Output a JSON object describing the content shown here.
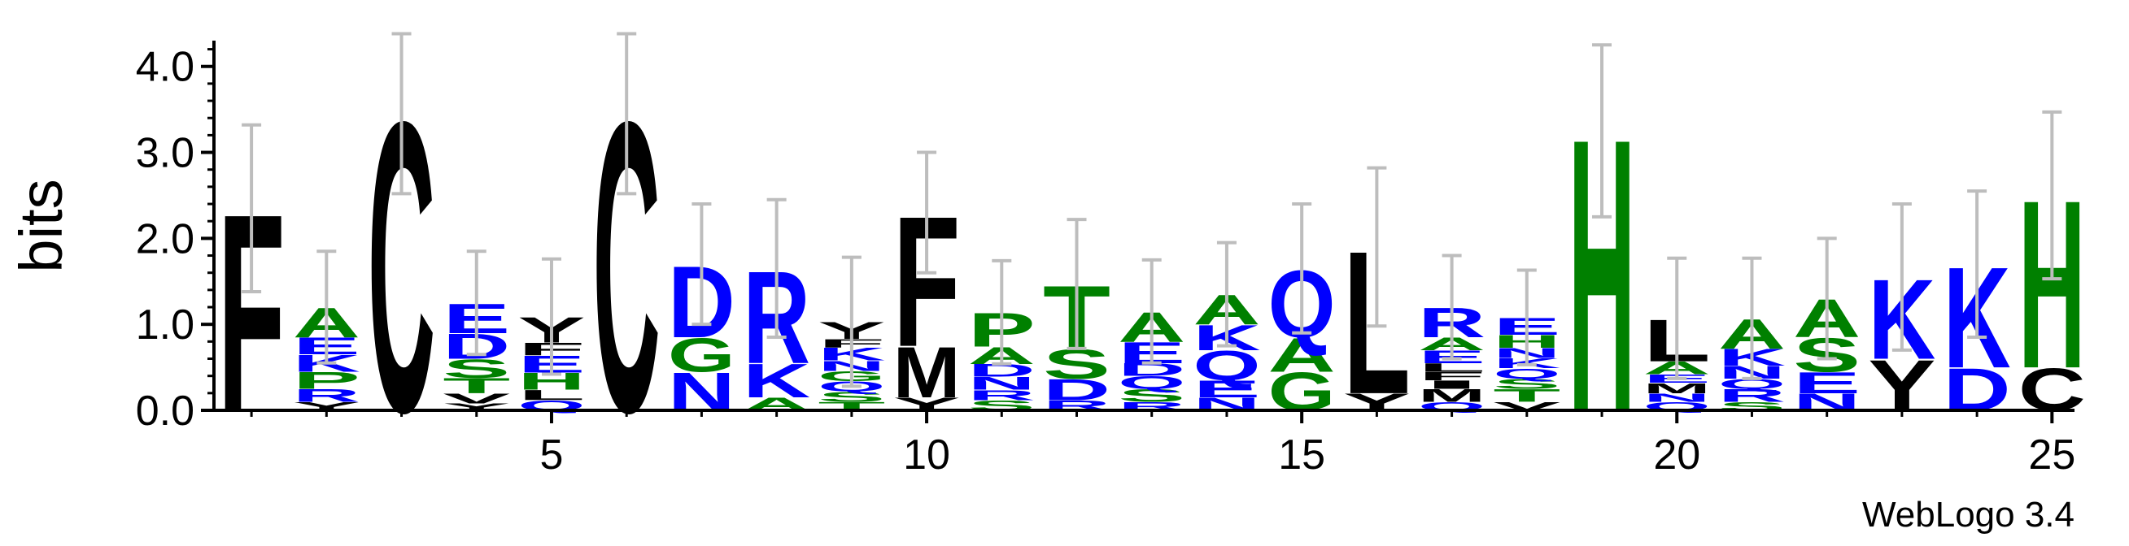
{
  "chart_data": {
    "type": "logo",
    "ylabel": "bits",
    "footer": "WebLogo 3.4",
    "ylim": [
      0,
      4.3
    ],
    "yticks": [
      {
        "value": 0,
        "label": "0.0"
      },
      {
        "value": 1,
        "label": "1.0"
      },
      {
        "value": 2,
        "label": "2.0"
      },
      {
        "value": 3,
        "label": "3.0"
      },
      {
        "value": 4,
        "label": "4.0"
      }
    ],
    "yminorticks": [
      0.2,
      0.4,
      0.6,
      0.8,
      1.2,
      1.4,
      1.6,
      1.8,
      2.2,
      2.4,
      2.6,
      2.8,
      3.2,
      3.4,
      3.6,
      3.8,
      4.2
    ],
    "xlim": [
      0.5,
      25.3
    ],
    "xticks": [
      5,
      10,
      15,
      20,
      25
    ],
    "xminorticks": [
      1,
      2,
      3,
      4,
      6,
      7,
      8,
      9,
      11,
      12,
      13,
      14,
      16,
      17,
      18,
      19,
      21,
      22,
      23,
      24
    ],
    "letter_colors": {
      "black": "#000000",
      "green": "#008000",
      "blue": "#0000ff"
    },
    "letter_groups": {
      "black": "FCYVLMIW",
      "green": "AGSTPH",
      "blue": "DEKRNQ"
    },
    "positions": [
      {
        "x": 1,
        "error": 0.97,
        "letters": [
          {
            "letter": "F",
            "height": 2.35
          }
        ]
      },
      {
        "x": 2,
        "error": 0.65,
        "letters": [
          {
            "letter": "Y",
            "height": 0.1
          },
          {
            "letter": "R",
            "height": 0.15
          },
          {
            "letter": "P",
            "height": 0.2
          },
          {
            "letter": "K",
            "height": 0.2
          },
          {
            "letter": "E",
            "height": 0.2
          },
          {
            "letter": "A",
            "height": 0.35
          }
        ]
      },
      {
        "x": 3,
        "error": 0.93,
        "letters": [
          {
            "letter": "C",
            "height": 3.45
          }
        ]
      },
      {
        "x": 4,
        "error": 0.6,
        "letters": [
          {
            "letter": "Y",
            "height": 0.08
          },
          {
            "letter": "V",
            "height": 0.12
          },
          {
            "letter": "T",
            "height": 0.18
          },
          {
            "letter": "S",
            "height": 0.22
          },
          {
            "letter": "D",
            "height": 0.3
          },
          {
            "letter": "E",
            "height": 0.35
          }
        ]
      },
      {
        "x": 5,
        "error": 0.67,
        "letters": [
          {
            "letter": "Q",
            "height": 0.12
          },
          {
            "letter": "L",
            "height": 0.12
          },
          {
            "letter": "H",
            "height": 0.2
          },
          {
            "letter": "E",
            "height": 0.2
          },
          {
            "letter": "F",
            "height": 0.15
          },
          {
            "letter": "Y",
            "height": 0.3
          }
        ]
      },
      {
        "x": 6,
        "error": 0.93,
        "letters": [
          {
            "letter": "C",
            "height": 3.45
          }
        ]
      },
      {
        "x": 7,
        "error": 0.7,
        "letters": [
          {
            "letter": "N",
            "height": 0.45
          },
          {
            "letter": "G",
            "height": 0.4
          },
          {
            "letter": "D",
            "height": 0.85
          }
        ]
      },
      {
        "x": 8,
        "error": 0.8,
        "letters": [
          {
            "letter": "A",
            "height": 0.15
          },
          {
            "letter": "K",
            "height": 0.4
          },
          {
            "letter": "R",
            "height": 1.1
          }
        ]
      },
      {
        "x": 9,
        "error": 0.75,
        "letters": [
          {
            "letter": "T",
            "height": 0.1
          },
          {
            "letter": "S",
            "height": 0.12
          },
          {
            "letter": "Q",
            "height": 0.12
          },
          {
            "letter": "G",
            "height": 0.12
          },
          {
            "letter": "N",
            "height": 0.12
          },
          {
            "letter": "K",
            "height": 0.15
          },
          {
            "letter": "F",
            "height": 0.1
          },
          {
            "letter": "Y",
            "height": 0.2
          }
        ]
      },
      {
        "x": 10,
        "error": 0.7,
        "letters": [
          {
            "letter": "Y",
            "height": 0.15
          },
          {
            "letter": "M",
            "height": 0.6
          },
          {
            "letter": "F",
            "height": 1.55
          }
        ]
      },
      {
        "x": 11,
        "error": 0.6,
        "letters": [
          {
            "letter": "S",
            "height": 0.12
          },
          {
            "letter": "R",
            "height": 0.12
          },
          {
            "letter": "N",
            "height": 0.15
          },
          {
            "letter": "D",
            "height": 0.15
          },
          {
            "letter": "A",
            "height": 0.2
          },
          {
            "letter": "P",
            "height": 0.4
          }
        ]
      },
      {
        "x": 12,
        "error": 0.75,
        "letters": [
          {
            "letter": "R",
            "height": 0.12
          },
          {
            "letter": "D",
            "height": 0.25
          },
          {
            "letter": "S",
            "height": 0.35
          },
          {
            "letter": "T",
            "height": 0.75
          }
        ]
      },
      {
        "x": 13,
        "error": 0.6,
        "letters": [
          {
            "letter": "R",
            "height": 0.1
          },
          {
            "letter": "S",
            "height": 0.15
          },
          {
            "letter": "Q",
            "height": 0.15
          },
          {
            "letter": "D",
            "height": 0.15
          },
          {
            "letter": "E",
            "height": 0.25
          },
          {
            "letter": "A",
            "height": 0.35
          }
        ]
      },
      {
        "x": 14,
        "error": 0.6,
        "letters": [
          {
            "letter": "N",
            "height": 0.15
          },
          {
            "letter": "E",
            "height": 0.2
          },
          {
            "letter": "Q",
            "height": 0.35
          },
          {
            "letter": "K",
            "height": 0.3
          },
          {
            "letter": "A",
            "height": 0.35
          }
        ]
      },
      {
        "x": 15,
        "error": 0.75,
        "letters": [
          {
            "letter": "G",
            "height": 0.45
          },
          {
            "letter": "A",
            "height": 0.4
          },
          {
            "letter": "Q",
            "height": 0.8
          }
        ]
      },
      {
        "x": 16,
        "error": 0.92,
        "letters": [
          {
            "letter": "Y",
            "height": 0.2
          },
          {
            "letter": "L",
            "height": 1.7
          }
        ]
      },
      {
        "x": 17,
        "error": 0.6,
        "letters": [
          {
            "letter": "Q",
            "height": 0.1
          },
          {
            "letter": "M",
            "height": 0.15
          },
          {
            "letter": "I",
            "height": 0.1
          },
          {
            "letter": "F",
            "height": 0.1
          },
          {
            "letter": "L",
            "height": 0.1
          },
          {
            "letter": "E",
            "height": 0.15
          },
          {
            "letter": "A",
            "height": 0.15
          },
          {
            "letter": "R",
            "height": 0.35
          }
        ]
      },
      {
        "x": 18,
        "error": 0.55,
        "letters": [
          {
            "letter": "V",
            "height": 0.1
          },
          {
            "letter": "T",
            "height": 0.15
          },
          {
            "letter": "S",
            "height": 0.12
          },
          {
            "letter": "Q",
            "height": 0.12
          },
          {
            "letter": "K",
            "height": 0.12
          },
          {
            "letter": "N",
            "height": 0.12
          },
          {
            "letter": "H",
            "height": 0.15
          },
          {
            "letter": "E",
            "height": 0.2
          }
        ]
      },
      {
        "x": 19,
        "error": 1.0,
        "letters": [
          {
            "letter": "H",
            "height": 3.25
          }
        ]
      },
      {
        "x": 20,
        "error": 0.7,
        "letters": [
          {
            "letter": "Q",
            "height": 0.1
          },
          {
            "letter": "N",
            "height": 0.1
          },
          {
            "letter": "M",
            "height": 0.12
          },
          {
            "letter": "E",
            "height": 0.1
          },
          {
            "letter": "A",
            "height": 0.15
          },
          {
            "letter": "L",
            "height": 0.5
          }
        ]
      },
      {
        "x": 21,
        "error": 0.7,
        "letters": [
          {
            "letter": "S",
            "height": 0.1
          },
          {
            "letter": "R",
            "height": 0.15
          },
          {
            "letter": "Q",
            "height": 0.12
          },
          {
            "letter": "N",
            "height": 0.15
          },
          {
            "letter": "K",
            "height": 0.2
          },
          {
            "letter": "A",
            "height": 0.35
          }
        ]
      },
      {
        "x": 22,
        "error": 0.7,
        "letters": [
          {
            "letter": "N",
            "height": 0.2
          },
          {
            "letter": "E",
            "height": 0.25
          },
          {
            "letter": "S",
            "height": 0.4
          },
          {
            "letter": "A",
            "height": 0.45
          }
        ]
      },
      {
        "x": 23,
        "error": 0.85,
        "letters": [
          {
            "letter": "Y",
            "height": 0.6
          },
          {
            "letter": "K",
            "height": 0.95
          }
        ]
      },
      {
        "x": 24,
        "error": 0.85,
        "letters": [
          {
            "letter": "D",
            "height": 0.5
          },
          {
            "letter": "K",
            "height": 1.2
          }
        ]
      },
      {
        "x": 25,
        "error": 0.97,
        "letters": [
          {
            "letter": "C",
            "height": 0.5
          },
          {
            "letter": "H",
            "height": 2.0
          }
        ]
      }
    ]
  }
}
